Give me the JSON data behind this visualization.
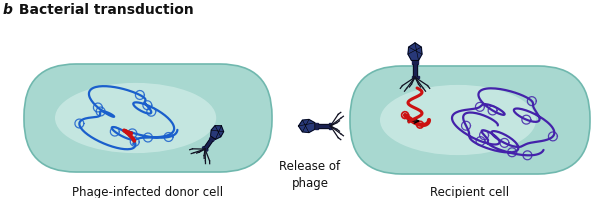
{
  "title_b": "b",
  "title_main": " Bacterial transduction",
  "label_left": "Phage-infected donor cell",
  "label_middle": "Release of\nphage",
  "label_right": "Recipient cell",
  "bg_color": "#ffffff",
  "cell_fill": "#a8d8d0",
  "cell_fill_light": "#d8f0ec",
  "cell_stroke": "#70b8ae",
  "dna_blue": "#1a5fcc",
  "dna_red": "#cc1111",
  "dna_purple": "#4422aa",
  "phage_head": "#283878",
  "phage_head_light": "#4455aa",
  "phage_body_dark": "#1a2050",
  "phage_legs": "#111122",
  "text_color": "#111111",
  "font_size_title": 9,
  "font_size_label": 8.5
}
